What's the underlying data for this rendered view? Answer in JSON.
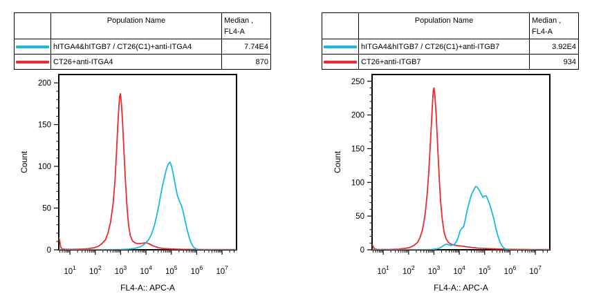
{
  "colors": {
    "background": "#ffffff",
    "axis": "#000000",
    "table_header_bg": "#c6c6c6",
    "cyan_series": "#14b9ec",
    "red_series": "#f1272b"
  },
  "panels": [
    {
      "table": {
        "population_header": "Population Name",
        "median_header_line1": "Median ,",
        "median_header_line2": "FL4-A",
        "rows": [
          {
            "swatch_color": "#14b9ec",
            "name": "hITGA4&hITGB7 / CT26(C1)+anti-ITGA4",
            "median": "7.74E4"
          },
          {
            "swatch_color": "#f1272b",
            "name": "CT26+anti-ITGA4",
            "median": "870"
          }
        ]
      }
    },
    {
      "table": {
        "population_header": "Population Name",
        "median_header_line1": "Median ,",
        "median_header_line2": "FL4-A",
        "rows": [
          {
            "swatch_color": "#14b9ec",
            "name": "hITGA4&hITGB7 / CT26(C1)+anti-ITGB7",
            "median": "3.92E4"
          },
          {
            "swatch_color": "#f1272b",
            "name": "CT26+anti-ITGB7",
            "median": "934"
          }
        ]
      }
    }
  ],
  "chart_data": [
    {
      "type": "line",
      "title": "",
      "xlabel": "FL4-A:: APC-A",
      "ylabel": "Count",
      "x_scale": "log10",
      "xlim_log10": [
        0.56,
        7.57
      ],
      "x_major_tick_exponents": [
        1,
        2,
        3,
        4,
        5,
        6,
        7
      ],
      "ylim": [
        0,
        210
      ],
      "y_major_ticks": [
        0,
        50,
        100,
        150,
        200
      ],
      "y_minor_step": 10,
      "grid": false,
      "legend_position": "table-above",
      "series": [
        {
          "name": "CT26+anti-ITGA4",
          "color": "#f1272b",
          "median_fl4a": "870",
          "points_log10x_count": [
            [
              0.56,
              15
            ],
            [
              0.6,
              10
            ],
            [
              0.64,
              3
            ],
            [
              0.7,
              1
            ],
            [
              0.85,
              0.6
            ],
            [
              1.1,
              0.6
            ],
            [
              1.4,
              0.8
            ],
            [
              1.7,
              1.2
            ],
            [
              1.95,
              2.5
            ],
            [
              2.1,
              4
            ],
            [
              2.25,
              7
            ],
            [
              2.4,
              12
            ],
            [
              2.5,
              20
            ],
            [
              2.6,
              33
            ],
            [
              2.7,
              55
            ],
            [
              2.78,
              85
            ],
            [
              2.84,
              120
            ],
            [
              2.89,
              150
            ],
            [
              2.93,
              172
            ],
            [
              2.96,
              184
            ],
            [
              2.99,
              187
            ],
            [
              3.03,
              175
            ],
            [
              3.08,
              150
            ],
            [
              3.13,
              118
            ],
            [
              3.19,
              82
            ],
            [
              3.25,
              52
            ],
            [
              3.31,
              30
            ],
            [
              3.38,
              17
            ],
            [
              3.46,
              11
            ],
            [
              3.55,
              8.5
            ],
            [
              3.65,
              7.5
            ],
            [
              3.78,
              7.5
            ],
            [
              3.9,
              8
            ],
            [
              4.0,
              8.5
            ],
            [
              4.1,
              7.5
            ],
            [
              4.22,
              5.5
            ],
            [
              4.35,
              4
            ],
            [
              4.5,
              2.5
            ],
            [
              4.7,
              1.5
            ],
            [
              5.0,
              1
            ],
            [
              5.4,
              0.6
            ],
            [
              5.9,
              0.4
            ],
            [
              6.5,
              0.3
            ],
            [
              7.57,
              0.3
            ]
          ]
        },
        {
          "name": "hITGA4&hITGB7 / CT26(C1)+anti-ITGA4",
          "color": "#14b9ec",
          "median_fl4a": "7.74E4",
          "points_log10x_count": [
            [
              0.56,
              0.2
            ],
            [
              2.5,
              0.2
            ],
            [
              3.0,
              0.4
            ],
            [
              3.3,
              0.8
            ],
            [
              3.5,
              1.5
            ],
            [
              3.65,
              2.5
            ],
            [
              3.8,
              4
            ],
            [
              3.95,
              7
            ],
            [
              4.1,
              12
            ],
            [
              4.22,
              19
            ],
            [
              4.33,
              29
            ],
            [
              4.43,
              42
            ],
            [
              4.52,
              56
            ],
            [
              4.62,
              72
            ],
            [
              4.72,
              86
            ],
            [
              4.8,
              96
            ],
            [
              4.88,
              103
            ],
            [
              4.95,
              105
            ],
            [
              5.02,
              99
            ],
            [
              5.09,
              88
            ],
            [
              5.16,
              77
            ],
            [
              5.24,
              65
            ],
            [
              5.32,
              58
            ],
            [
              5.4,
              53
            ],
            [
              5.47,
              45
            ],
            [
              5.55,
              34
            ],
            [
              5.63,
              23
            ],
            [
              5.72,
              13
            ],
            [
              5.8,
              7
            ],
            [
              5.88,
              3
            ],
            [
              5.97,
              1.2
            ],
            [
              6.07,
              0.3
            ],
            [
              6.2,
              0.1
            ],
            [
              7.57,
              0.1
            ]
          ]
        }
      ]
    },
    {
      "type": "line",
      "title": "",
      "xlabel": "FL4-A:: APC-A",
      "ylabel": "Count",
      "x_scale": "log10",
      "xlim_log10": [
        0.56,
        7.57
      ],
      "x_major_tick_exponents": [
        1,
        2,
        3,
        4,
        5,
        6,
        7
      ],
      "ylim": [
        0,
        260
      ],
      "y_major_ticks": [
        0,
        50,
        100,
        150,
        200,
        250
      ],
      "y_minor_step": 10,
      "grid": false,
      "legend_position": "table-above",
      "series": [
        {
          "name": "CT26+anti-ITGB7",
          "color": "#f1272b",
          "median_fl4a": "934",
          "points_log10x_count": [
            [
              0.56,
              8
            ],
            [
              0.6,
              5
            ],
            [
              0.65,
              1.5
            ],
            [
              0.75,
              0.6
            ],
            [
              1.0,
              0.5
            ],
            [
              1.3,
              0.6
            ],
            [
              1.6,
              1
            ],
            [
              1.85,
              2
            ],
            [
              2.05,
              3.5
            ],
            [
              2.2,
              6
            ],
            [
              2.35,
              11
            ],
            [
              2.45,
              18
            ],
            [
              2.55,
              30
            ],
            [
              2.65,
              52
            ],
            [
              2.73,
              82
            ],
            [
              2.8,
              118
            ],
            [
              2.86,
              158
            ],
            [
              2.91,
              195
            ],
            [
              2.95,
              222
            ],
            [
              2.98,
              238
            ],
            [
              3.0,
              240
            ],
            [
              3.04,
              228
            ],
            [
              3.09,
              198
            ],
            [
              3.14,
              158
            ],
            [
              3.2,
              112
            ],
            [
              3.26,
              72
            ],
            [
              3.33,
              44
            ],
            [
              3.4,
              26
            ],
            [
              3.48,
              16
            ],
            [
              3.57,
              11
            ],
            [
              3.67,
              8.5
            ],
            [
              3.8,
              7
            ],
            [
              3.95,
              6
            ],
            [
              4.1,
              5.5
            ],
            [
              4.3,
              4.5
            ],
            [
              4.5,
              3.5
            ],
            [
              4.75,
              2.5
            ],
            [
              5.0,
              2
            ],
            [
              5.3,
              1.5
            ],
            [
              5.7,
              1
            ],
            [
              6.2,
              0.6
            ],
            [
              6.8,
              0.4
            ],
            [
              7.57,
              0.4
            ]
          ]
        },
        {
          "name": "hITGA4&hITGB7 / CT26(C1)+anti-ITGB7",
          "color": "#14b9ec",
          "median_fl4a": "3.92E4",
          "points_log10x_count": [
            [
              0.56,
              0.2
            ],
            [
              2.6,
              0.2
            ],
            [
              2.9,
              0.5
            ],
            [
              3.1,
              1.2
            ],
            [
              3.25,
              3
            ],
            [
              3.35,
              5.5
            ],
            [
              3.45,
              8
            ],
            [
              3.52,
              8.5
            ],
            [
              3.6,
              7
            ],
            [
              3.7,
              6.5
            ],
            [
              3.8,
              8
            ],
            [
              3.9,
              13
            ],
            [
              3.97,
              20
            ],
            [
              4.03,
              28
            ],
            [
              4.1,
              32
            ],
            [
              4.17,
              34
            ],
            [
              4.24,
              45
            ],
            [
              4.32,
              60
            ],
            [
              4.4,
              72
            ],
            [
              4.48,
              82
            ],
            [
              4.56,
              88
            ],
            [
              4.64,
              94
            ],
            [
              4.7,
              93
            ],
            [
              4.78,
              89
            ],
            [
              4.86,
              83
            ],
            [
              4.93,
              78
            ],
            [
              5.0,
              80
            ],
            [
              5.06,
              80
            ],
            [
              5.12,
              75
            ],
            [
              5.2,
              67
            ],
            [
              5.28,
              57
            ],
            [
              5.36,
              46
            ],
            [
              5.44,
              32
            ],
            [
              5.52,
              21
            ],
            [
              5.6,
              12
            ],
            [
              5.68,
              6
            ],
            [
              5.77,
              2.5
            ],
            [
              5.85,
              1
            ],
            [
              5.95,
              0.3
            ],
            [
              6.1,
              0.1
            ],
            [
              7.57,
              0.1
            ]
          ]
        }
      ]
    }
  ]
}
